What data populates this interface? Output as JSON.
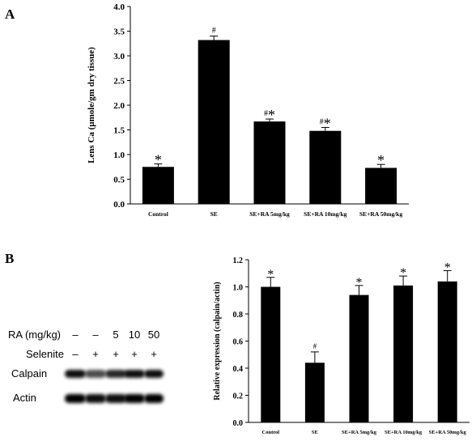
{
  "panel_a": {
    "label": "A"
  },
  "panel_b": {
    "label": "B",
    "blot": {
      "ra_label": "RA (mg/kg)",
      "ra_values": [
        "–",
        "–",
        "5",
        "10",
        "50"
      ],
      "selenite_label": "Selenite",
      "selenite_values": [
        "–",
        "+",
        "+",
        "+",
        "+"
      ],
      "row_labels": [
        "Calpain",
        "Actin"
      ],
      "calpain_intensity": [
        0.95,
        0.7,
        0.85,
        0.95,
        0.95
      ],
      "actin_intensity": [
        1.0,
        0.95,
        0.95,
        1.0,
        1.0
      ]
    }
  },
  "chart_data": [
    {
      "type": "bar",
      "title": "",
      "xlabel": "",
      "ylabel": "Lens Ca (µmole/gm dry tissue)",
      "ylim": [
        0,
        4.0
      ],
      "yticks": [
        "0.0",
        "0.5",
        "1.0",
        "1.5",
        "2.0",
        "2.5",
        "3.0",
        "3.5",
        "4.0"
      ],
      "categories": [
        "Control",
        "SE",
        "SE+RA 5mg/kg",
        "SE+RA 10mg/kg",
        "SE+RA 50mg/kg"
      ],
      "values": [
        0.75,
        3.32,
        1.67,
        1.48,
        0.73
      ],
      "errors": [
        0.06,
        0.08,
        0.05,
        0.07,
        0.07
      ],
      "annotations": [
        "*",
        "#",
        "#*",
        "#*",
        "*"
      ]
    },
    {
      "type": "bar",
      "title": "",
      "xlabel": "",
      "ylabel": "Relative expression (calpain/actin)",
      "ylim": [
        0,
        1.2
      ],
      "yticks": [
        "0.0",
        "0.2",
        "0.4",
        "0.6",
        "0.8",
        "1.0",
        "1.2"
      ],
      "categories": [
        "Control",
        "SE",
        "SE+RA 5mg/kg",
        "SE+RA 10mg/kg",
        "SE+RA 50mg/kg"
      ],
      "values": [
        1.0,
        0.44,
        0.94,
        1.01,
        1.04
      ],
      "errors": [
        0.07,
        0.08,
        0.07,
        0.07,
        0.08
      ],
      "annotations": [
        "*",
        "#",
        "*",
        "*",
        "*"
      ]
    }
  ]
}
